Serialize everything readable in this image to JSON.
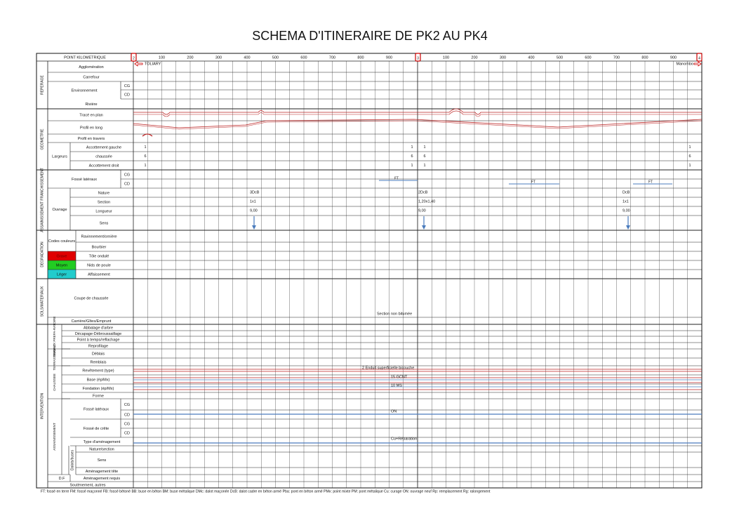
{
  "title": "SCHEMA D'ITINERAIRE DE PK2 AU PK4",
  "header": {
    "label": "POINT KILOMETRIQUE",
    "pk": [
      "2",
      "3",
      "4"
    ],
    "ticks": [
      "100",
      "200",
      "300",
      "400",
      "500",
      "600",
      "700",
      "800",
      "900"
    ],
    "start": "TOLIARY",
    "end": "Manombo"
  },
  "sections": [
    "REPERAGE",
    "GEOMETRIE",
    "ASSAINISSEMENT FRANCHISSEMENT",
    "DEGRADATION",
    "SOLS/MATERIAUX",
    "INTERVENTION"
  ],
  "subsections": [
    "TRAVAUX PREPA-RATOIRE",
    "TERRASSEMENT",
    "CHAUSSEE",
    "ASSAINISSEMENT",
    "Dalots/buses"
  ],
  "rows": [
    "Agglomération",
    "Carrefour",
    "Rivière",
    "Tracé en plan",
    "Profil en long",
    "Profil en travers",
    "Accottement gauche",
    "chaussée",
    "Accottement droit",
    "Nature",
    "Section",
    "Longueur",
    "Sens",
    "Ravinnement/ornière",
    "Bourbier",
    "Tôle ondulé",
    "Nids de poule",
    "Affaissement",
    "Coupe de chaussée",
    "Carrière/Gîtes/Emprunt",
    "Abbatage d'arbre",
    "Décapage-Débroussaillage",
    "Point à temps/reflachage",
    "Reprofilage",
    "Déblais",
    "Remblais",
    "Revêtement (type)",
    "Base (ép/Mx)",
    "Fondation (ép/Mx)",
    "Forme",
    "Type d'aménagement",
    "Nature/section",
    "Sens",
    "Aménagement tête",
    "Aménagement requis",
    "Soutènement, autres"
  ],
  "groups": [
    "Environnement",
    "Largeurs",
    "Fossé latéraux",
    "Ouvrage",
    "Codes couleurs",
    "Fossé latéraux",
    "Fossé de crête",
    "D.F"
  ],
  "sides": [
    "CG",
    "CD",
    "CG",
    "CD",
    "CG",
    "CD",
    "CG",
    "CD"
  ],
  "severity": [
    "Grave",
    "Moyen",
    "Léger"
  ],
  "widths": [
    [
      "1",
      "6",
      "1"
    ],
    [
      "1",
      "6",
      "1"
    ],
    [
      "1",
      "6",
      "1"
    ],
    [
      "1",
      "6",
      "1"
    ]
  ],
  "ouvrages": [
    [
      "3DcB",
      "1x1",
      "9,00"
    ],
    [
      "2DcB",
      "1,20x1,40",
      "9,00"
    ],
    [
      "DcB",
      "1x1",
      "9,00"
    ]
  ],
  "fosses": [
    "FT",
    "FT",
    "FT"
  ],
  "notes": [
    "Section non bitumée",
    "2 Enduit superficielle bicouche",
    "15 GCNT",
    "10 MS",
    "ON",
    "Cu+Réparation"
  ],
  "footnote": "FT: fossé en terre   FM: fossé maçonné   FB: fossé bétoné   BB: buse en béton   BM: buse métalique   DMc: dalot maçonée   DcB: dalot cadre en béton armé   Pba: pont en béton armé PMx: point mixte   PM: pont métalique   Cu: curage   ON: ouvrage neuf   Rp: remplacement   Rg: ralongement"
}
